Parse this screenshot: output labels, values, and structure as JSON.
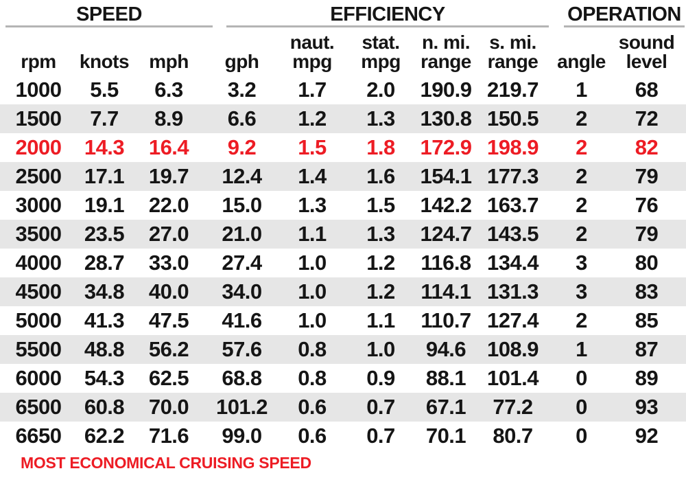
{
  "colors": {
    "highlight_red": "#ed1c24",
    "row_band": "#e6e6e6",
    "text": "#151515",
    "section_rule": "#b4b4b4"
  },
  "sections": [
    {
      "title": "SPEED"
    },
    {
      "title": "EFFICIENCY"
    },
    {
      "title": "OPERATION"
    }
  ],
  "table": {
    "columns": [
      {
        "line1": "",
        "line2": "rpm"
      },
      {
        "line1": "",
        "line2": "knots"
      },
      {
        "line1": "",
        "line2": "mph"
      },
      {
        "line1": "",
        "line2": "gph"
      },
      {
        "line1": "naut.",
        "line2": "mpg"
      },
      {
        "line1": "stat.",
        "line2": "mpg"
      },
      {
        "line1": "n. mi.",
        "line2": "range"
      },
      {
        "line1": "s. mi.",
        "line2": "range"
      },
      {
        "line1": "",
        "line2": "angle"
      },
      {
        "line1": "sound",
        "line2": "level"
      }
    ],
    "rows": [
      {
        "highlight": false,
        "values": [
          "1000",
          "5.5",
          "6.3",
          "3.2",
          "1.7",
          "2.0",
          "190.9",
          "219.7",
          "1",
          "68"
        ]
      },
      {
        "highlight": false,
        "values": [
          "1500",
          "7.7",
          "8.9",
          "6.6",
          "1.2",
          "1.3",
          "130.8",
          "150.5",
          "2",
          "72"
        ]
      },
      {
        "highlight": true,
        "values": [
          "2000",
          "14.3",
          "16.4",
          "9.2",
          "1.5",
          "1.8",
          "172.9",
          "198.9",
          "2",
          "82"
        ]
      },
      {
        "highlight": false,
        "values": [
          "2500",
          "17.1",
          "19.7",
          "12.4",
          "1.4",
          "1.6",
          "154.1",
          "177.3",
          "2",
          "79"
        ]
      },
      {
        "highlight": false,
        "values": [
          "3000",
          "19.1",
          "22.0",
          "15.0",
          "1.3",
          "1.5",
          "142.2",
          "163.7",
          "2",
          "76"
        ]
      },
      {
        "highlight": false,
        "values": [
          "3500",
          "23.5",
          "27.0",
          "21.0",
          "1.1",
          "1.3",
          "124.7",
          "143.5",
          "2",
          "79"
        ]
      },
      {
        "highlight": false,
        "values": [
          "4000",
          "28.7",
          "33.0",
          "27.4",
          "1.0",
          "1.2",
          "116.8",
          "134.4",
          "3",
          "80"
        ]
      },
      {
        "highlight": false,
        "values": [
          "4500",
          "34.8",
          "40.0",
          "34.0",
          "1.0",
          "1.2",
          "114.1",
          "131.3",
          "3",
          "83"
        ]
      },
      {
        "highlight": false,
        "values": [
          "5000",
          "41.3",
          "47.5",
          "41.6",
          "1.0",
          "1.1",
          "110.7",
          "127.4",
          "2",
          "85"
        ]
      },
      {
        "highlight": false,
        "values": [
          "5500",
          "48.8",
          "56.2",
          "57.6",
          "0.8",
          "1.0",
          "94.6",
          "108.9",
          "1",
          "87"
        ]
      },
      {
        "highlight": false,
        "values": [
          "6000",
          "54.3",
          "62.5",
          "68.8",
          "0.8",
          "0.9",
          "88.1",
          "101.4",
          "0",
          "89"
        ]
      },
      {
        "highlight": false,
        "values": [
          "6500",
          "60.8",
          "70.0",
          "101.2",
          "0.6",
          "0.7",
          "67.1",
          "77.2",
          "0",
          "93"
        ]
      },
      {
        "highlight": false,
        "values": [
          "6650",
          "62.2",
          "71.6",
          "99.0",
          "0.6",
          "0.7",
          "70.1",
          "80.7",
          "0",
          "92"
        ]
      }
    ]
  },
  "footnote": "MOST ECONOMICAL CRUISING SPEED",
  "chart_data": {
    "type": "table",
    "section_headers": [
      "SPEED",
      "EFFICIENCY",
      "OPERATION"
    ],
    "section_column_spans": {
      "SPEED": [
        "rpm",
        "knots",
        "mph"
      ],
      "EFFICIENCY": [
        "gph",
        "naut. mpg",
        "stat. mpg",
        "n. mi. range",
        "s. mi. range"
      ],
      "OPERATION": [
        "angle",
        "sound level"
      ]
    },
    "columns": [
      "rpm",
      "knots",
      "mph",
      "gph",
      "naut. mpg",
      "stat. mpg",
      "n. mi. range",
      "s. mi. range",
      "angle",
      "sound level"
    ],
    "rows": [
      [
        1000,
        5.5,
        6.3,
        3.2,
        1.7,
        2.0,
        190.9,
        219.7,
        1,
        68
      ],
      [
        1500,
        7.7,
        8.9,
        6.6,
        1.2,
        1.3,
        130.8,
        150.5,
        2,
        72
      ],
      [
        2000,
        14.3,
        16.4,
        9.2,
        1.5,
        1.8,
        172.9,
        198.9,
        2,
        82
      ],
      [
        2500,
        17.1,
        19.7,
        12.4,
        1.4,
        1.6,
        154.1,
        177.3,
        2,
        79
      ],
      [
        3000,
        19.1,
        22.0,
        15.0,
        1.3,
        1.5,
        142.2,
        163.7,
        2,
        76
      ],
      [
        3500,
        23.5,
        27.0,
        21.0,
        1.1,
        1.3,
        124.7,
        143.5,
        2,
        79
      ],
      [
        4000,
        28.7,
        33.0,
        27.4,
        1.0,
        1.2,
        116.8,
        134.4,
        3,
        80
      ],
      [
        4500,
        34.8,
        40.0,
        34.0,
        1.0,
        1.2,
        114.1,
        131.3,
        3,
        83
      ],
      [
        5000,
        41.3,
        47.5,
        41.6,
        1.0,
        1.1,
        110.7,
        127.4,
        2,
        85
      ],
      [
        5500,
        48.8,
        56.2,
        57.6,
        0.8,
        1.0,
        94.6,
        108.9,
        1,
        87
      ],
      [
        6000,
        54.3,
        62.5,
        68.8,
        0.8,
        0.9,
        88.1,
        101.4,
        0,
        89
      ],
      [
        6500,
        60.8,
        70.0,
        101.2,
        0.6,
        0.7,
        67.1,
        77.2,
        0,
        93
      ],
      [
        6650,
        62.2,
        71.6,
        99.0,
        0.6,
        0.7,
        70.1,
        80.7,
        0,
        92
      ]
    ],
    "highlighted_row_rpm": 2000,
    "highlight_color": "#ed1c24",
    "footnote": "MOST ECONOMICAL CRUISING SPEED"
  }
}
